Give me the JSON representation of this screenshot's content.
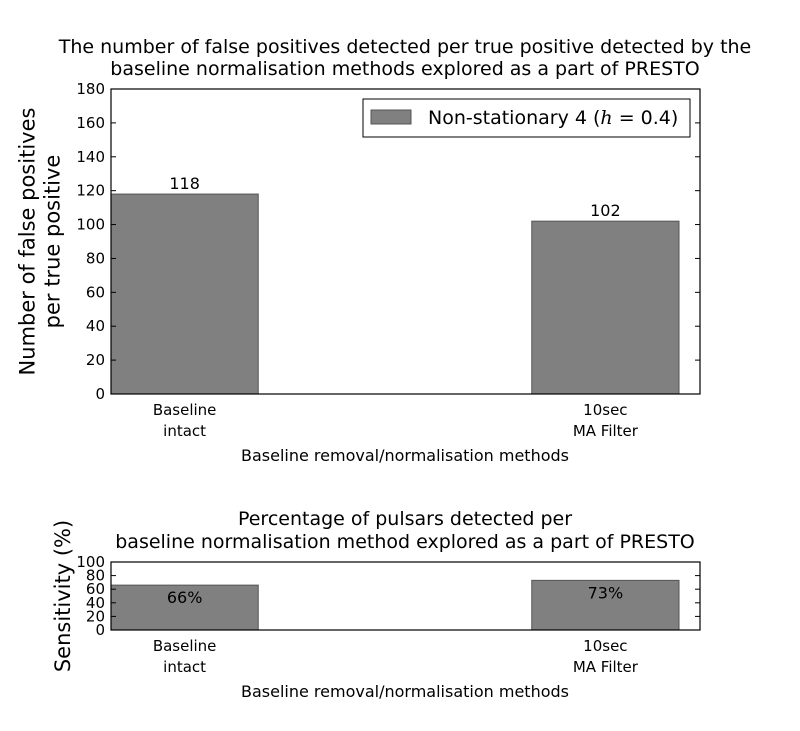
{
  "chart_data": [
    {
      "type": "bar",
      "title": "The number of false positives detected per true positive detected by the baseline normalisation methods explored as a part of PRESTO",
      "title_lines": [
        "The number of false positives detected per true positive detected by the",
        "baseline normalisation methods explored as a part of PRESTO"
      ],
      "xlabel": "Baseline removal/normalisation methods",
      "ylabel": "Number of false positives per true positive",
      "ylabel_lines": [
        "Number of false positives",
        "per true positive"
      ],
      "categories": [
        "Baseline intact",
        "10sec MA Filter"
      ],
      "category_lines": [
        [
          "Baseline",
          "intact"
        ],
        [
          "10sec",
          "MA Filter"
        ]
      ],
      "series": [
        {
          "name": "Non-stationary 4 (h = 0.4)",
          "values": [
            118,
            102
          ],
          "color": "#808080"
        }
      ],
      "data_labels": [
        "118",
        "102"
      ],
      "legend": {
        "text": "Non-stationary 4 (",
        "italic": "h",
        "text_after": " = 0.4)",
        "placement": "top-right"
      },
      "ylim": [
        0,
        180
      ],
      "yticks": [
        0,
        20,
        40,
        60,
        80,
        100,
        120,
        140,
        160,
        180
      ],
      "grid": false
    },
    {
      "type": "bar",
      "title": "Percentage of pulsars detected per baseline normalisation method explored as a part of PRESTO",
      "title_lines": [
        "Percentage of pulsars detected per",
        "baseline normalisation method explored as a part of PRESTO"
      ],
      "xlabel": "Baseline removal/normalisation methods",
      "ylabel": "Sensitivity (%)",
      "ylabel_lines": [
        "Sensitivity (%)"
      ],
      "categories": [
        "Baseline intact",
        "10sec MA Filter"
      ],
      "category_lines": [
        [
          "Baseline",
          "intact"
        ],
        [
          "10sec",
          "MA Filter"
        ]
      ],
      "series": [
        {
          "values": [
            66,
            73
          ],
          "color": "#808080"
        }
      ],
      "data_labels": [
        "66%",
        "73%"
      ],
      "ylim": [
        0,
        100
      ],
      "yticks": [
        0,
        20,
        40,
        60,
        80,
        100
      ],
      "grid": false
    }
  ]
}
